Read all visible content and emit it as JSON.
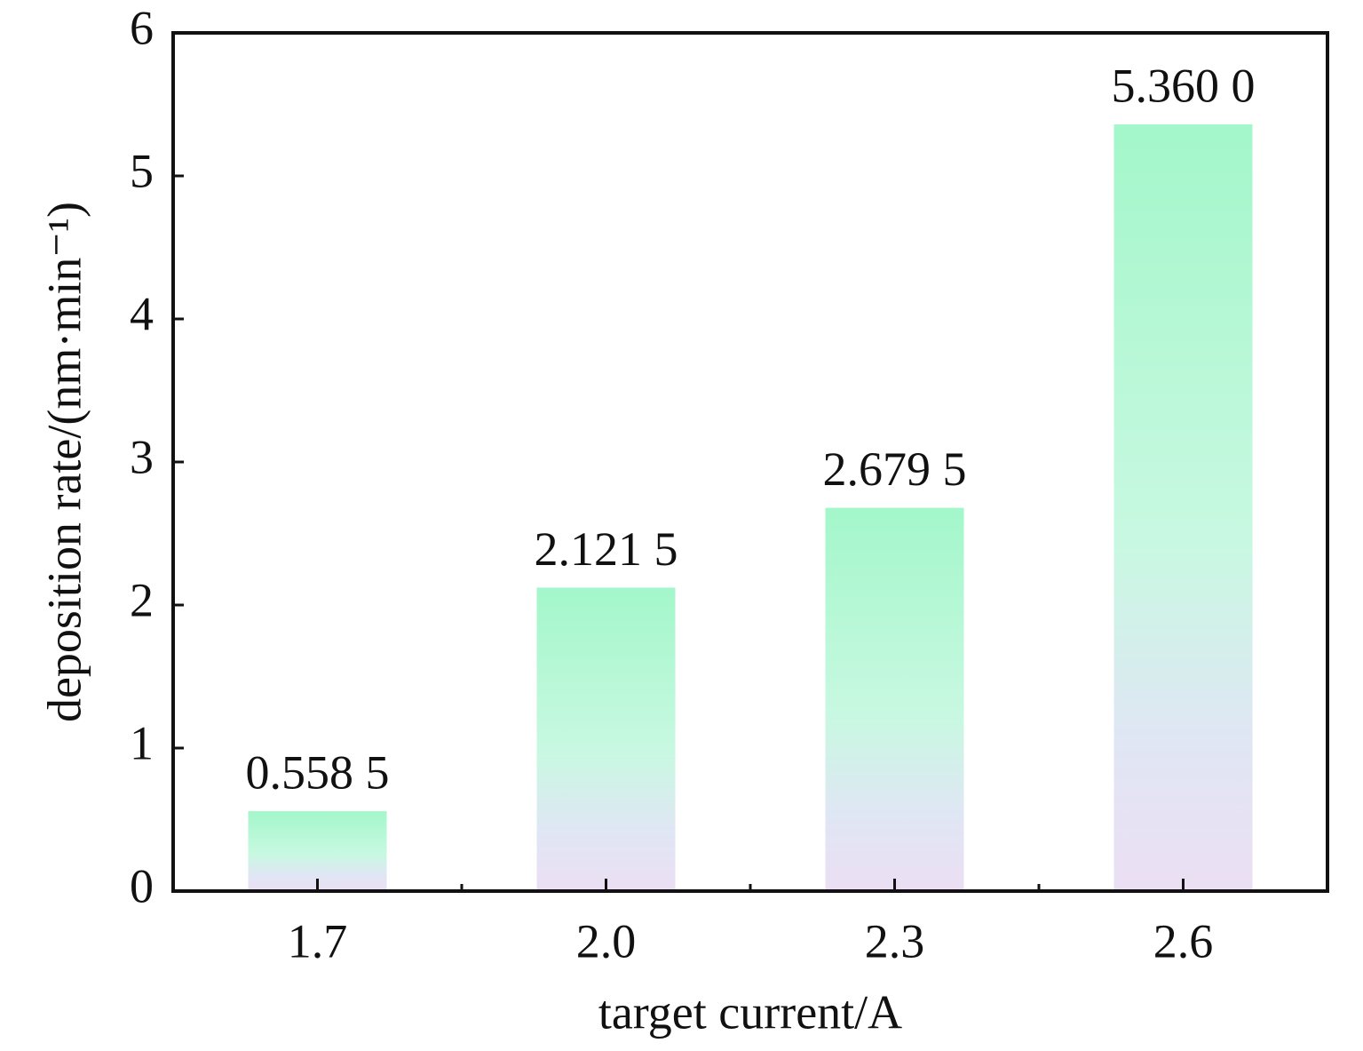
{
  "chart_data": {
    "type": "bar",
    "x_label": "target current/A",
    "y_label": "deposition rate/(nm·min⁻¹)",
    "categories": [
      "1.7",
      "2.0",
      "2.3",
      "2.6"
    ],
    "values": [
      0.5585,
      2.1215,
      2.6795,
      5.36
    ],
    "value_labels": [
      "0.558 5",
      "2.121 5",
      "2.679 5",
      "5.360 0"
    ],
    "color": "#a3f7ca",
    "ylim": [
      0,
      6
    ],
    "yticks": [
      0,
      1,
      2,
      3,
      4,
      5,
      6
    ],
    "grid": false
  }
}
